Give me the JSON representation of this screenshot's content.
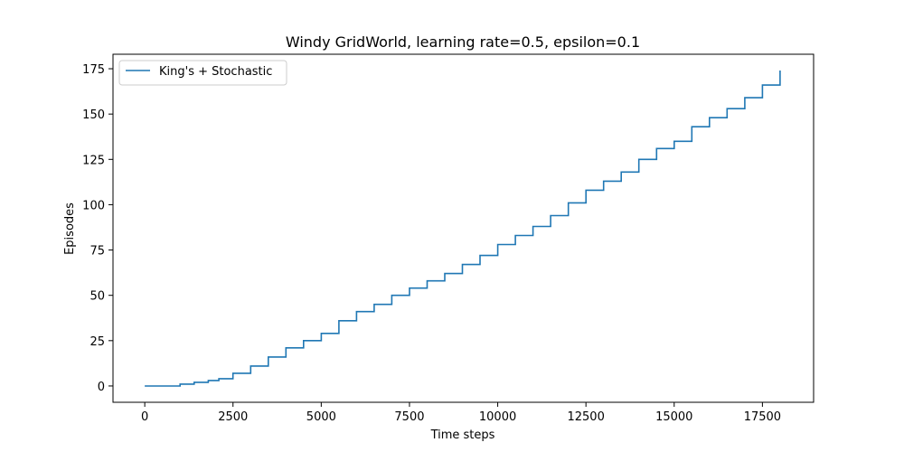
{
  "chart_data": {
    "type": "line",
    "title": "Windy GridWorld, learning rate=0.5, epsilon=0.1",
    "xlabel": "Time steps",
    "ylabel": "Episodes",
    "xlim": [
      -900,
      18950
    ],
    "ylim": [
      -9,
      183
    ],
    "xticks": [
      0,
      2500,
      5000,
      7500,
      10000,
      12500,
      15000,
      17500
    ],
    "xtick_labels": [
      "0",
      "2500",
      "5000",
      "7500",
      "10000",
      "12500",
      "15000",
      "17500"
    ],
    "yticks": [
      0,
      25,
      50,
      75,
      100,
      125,
      150,
      175
    ],
    "ytick_labels": [
      "0",
      "25",
      "50",
      "75",
      "100",
      "125",
      "150",
      "175"
    ],
    "grid": false,
    "legend_position": "top-left",
    "series": [
      {
        "name": "King's + Stochastic",
        "color": "#1f77b4",
        "step": true,
        "x": [
          0,
          1000,
          1400,
          1800,
          2100,
          2500,
          3000,
          3500,
          4000,
          4500,
          5000,
          5500,
          6000,
          6500,
          7000,
          7500,
          8000,
          8500,
          9000,
          9500,
          10000,
          10500,
          11000,
          11500,
          12000,
          12500,
          13000,
          13500,
          14000,
          14500,
          15000,
          15500,
          16000,
          16500,
          17000,
          17500,
          18000
        ],
        "y": [
          0,
          1,
          2,
          3,
          4,
          7,
          11,
          16,
          21,
          25,
          29,
          36,
          41,
          45,
          50,
          54,
          58,
          62,
          67,
          72,
          78,
          83,
          88,
          94,
          101,
          108,
          113,
          118,
          125,
          131,
          135,
          143,
          148,
          153,
          159,
          166,
          174
        ]
      }
    ]
  }
}
